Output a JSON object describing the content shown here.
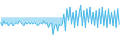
{
  "chart_data": {
    "type": "area",
    "values": [
      -3,
      -5,
      -2,
      -4,
      -3,
      -5,
      -4,
      -3,
      -5,
      -4,
      -3,
      -4,
      -2,
      -3,
      -4,
      -5,
      -3,
      -4,
      -3,
      -4,
      -3,
      -4,
      -3,
      -4,
      -5,
      -4,
      -3,
      -4,
      -2,
      -4,
      -3,
      -6,
      -4,
      -3,
      -10,
      -5,
      -4,
      -8,
      -4,
      -5,
      -4,
      2,
      -8,
      5,
      -2,
      6,
      -4,
      3,
      -6,
      4,
      -5,
      3,
      7,
      -5,
      4,
      -6,
      5,
      -3,
      6,
      -4,
      3,
      -5,
      4,
      -6,
      5,
      -4,
      6,
      -5,
      4,
      -6,
      5,
      -4,
      3,
      -5,
      4,
      -6,
      5,
      -4
    ],
    "color": "#4ab8e8",
    "ylim": [
      -16,
      10
    ],
    "grid": false,
    "tick_labels": false
  }
}
